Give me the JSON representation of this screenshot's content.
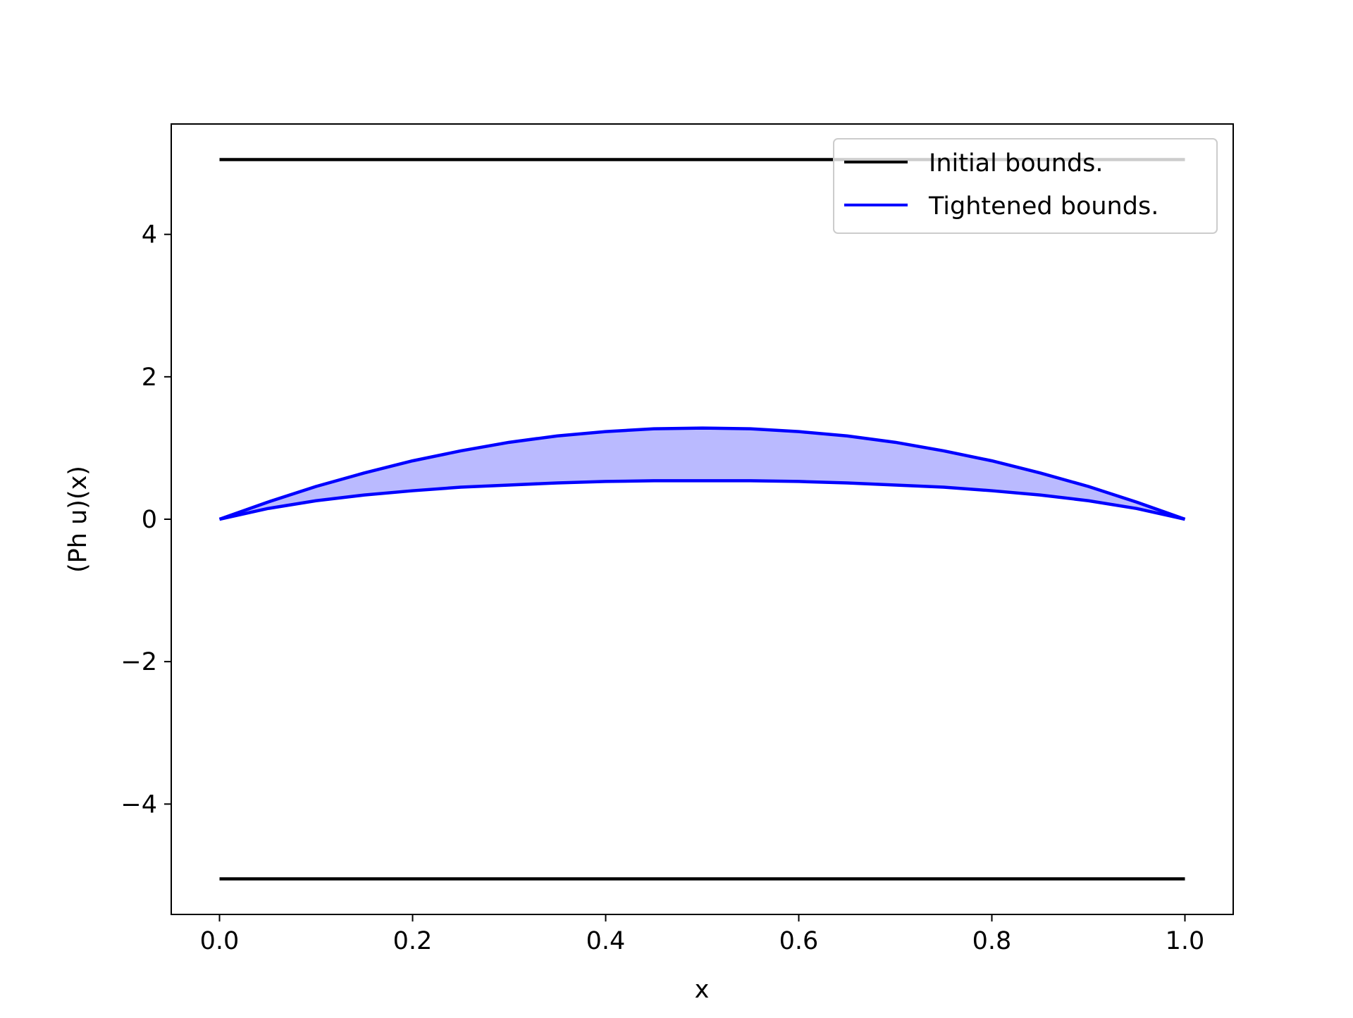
{
  "chart_data": {
    "type": "line",
    "title": "",
    "xlabel": "x",
    "ylabel": "(Ph u)(x)",
    "xlim": [
      -0.05,
      1.05
    ],
    "ylim": [
      -5.55,
      5.55
    ],
    "xticks": [
      0.0,
      0.2,
      0.4,
      0.6,
      0.8,
      1.0
    ],
    "xtick_labels": [
      "0.0",
      "0.2",
      "0.4",
      "0.6",
      "0.8",
      "1.0"
    ],
    "yticks": [
      -4,
      -2,
      0,
      2,
      4
    ],
    "ytick_labels": [
      "−4",
      "−2",
      "0",
      "2",
      "4"
    ],
    "grid": false,
    "legend_position": "upper-right",
    "series": [
      {
        "name": "Initial bounds.",
        "color": "#000000",
        "x": [
          0.0,
          1.0
        ],
        "upper": [
          5.05,
          5.05
        ],
        "lower": [
          -5.05,
          -5.05
        ]
      },
      {
        "name": "Tightened bounds.",
        "color": "#0000ff",
        "fill_color": "#babaff",
        "x": [
          0.0,
          0.05,
          0.1,
          0.15,
          0.2,
          0.25,
          0.3,
          0.35,
          0.4,
          0.45,
          0.5,
          0.55,
          0.6,
          0.65,
          0.7,
          0.75,
          0.8,
          0.85,
          0.9,
          0.95,
          1.0
        ],
        "upper": [
          0.0,
          0.24,
          0.46,
          0.65,
          0.82,
          0.96,
          1.08,
          1.17,
          1.23,
          1.27,
          1.28,
          1.27,
          1.23,
          1.17,
          1.08,
          0.96,
          0.82,
          0.65,
          0.46,
          0.24,
          0.0
        ],
        "lower": [
          0.0,
          0.15,
          0.26,
          0.34,
          0.4,
          0.45,
          0.48,
          0.51,
          0.53,
          0.54,
          0.54,
          0.54,
          0.53,
          0.51,
          0.48,
          0.45,
          0.4,
          0.34,
          0.26,
          0.15,
          0.0
        ]
      }
    ]
  }
}
